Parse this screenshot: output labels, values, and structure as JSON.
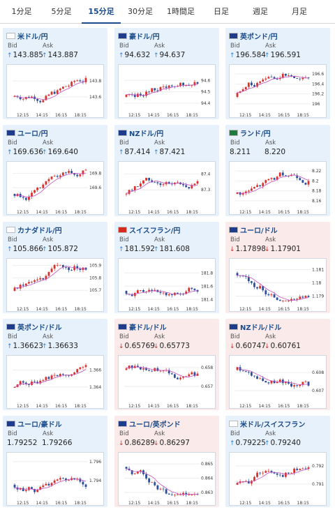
{
  "tabs": [
    {
      "label": "1分足"
    },
    {
      "label": "5分足"
    },
    {
      "label": "15分足",
      "active": true
    },
    {
      "label": "30分足"
    },
    {
      "label": "1時間足"
    },
    {
      "label": "日足"
    },
    {
      "label": "週足"
    },
    {
      "label": "月足"
    }
  ],
  "colors": {
    "up_arrow": "#2a7fd4",
    "down_arrow": "#c9302c",
    "bull_candle": "#d9312b",
    "bear_candle": "#2b4f9a",
    "ma_line": "#c44fc4",
    "up_card": "#e7f1fb",
    "down_card": "#fbeaea",
    "accent": "#1a4c8b"
  },
  "labels": {
    "bid": "Bid",
    "ask": "Ask"
  },
  "x_ticks": [
    "12:15",
    "14:15",
    "16:15",
    "18:15"
  ],
  "cards": [
    {
      "pair": "米ドル/円",
      "flag": "us-jp",
      "trend": "up",
      "bid": "143.885",
      "ask": "143.887",
      "y_ticks": [
        "143.8",
        "143.6"
      ],
      "ylim": [
        143.45,
        143.95
      ]
    },
    {
      "pair": "豪ドル/円",
      "flag": "au-jp",
      "trend": "up",
      "bid": "94.632",
      "ask": "94.637",
      "y_ticks": [
        "94.6",
        "94.5",
        "94.4"
      ],
      "ylim": [
        94.35,
        94.7
      ]
    },
    {
      "pair": "英ポンド/円",
      "flag": "gb-jp",
      "trend": "up",
      "bid": "196.584",
      "ask": "196.591",
      "y_ticks": [
        "196.6",
        "196.4",
        "196.2",
        "196"
      ],
      "ylim": [
        195.9,
        196.7
      ]
    },
    {
      "pair": "ユーロ/円",
      "flag": "eu-jp",
      "trend": "up",
      "bid": "169.636",
      "ask": "169.640",
      "y_ticks": [
        "169.8",
        "169.6"
      ],
      "ylim": [
        169.35,
        169.9
      ]
    },
    {
      "pair": "NZドル/円",
      "flag": "nz-jp",
      "trend": "up",
      "bid": "87.414",
      "ask": "87.421",
      "y_ticks": [
        "87.4",
        "87.3"
      ],
      "ylim": [
        87.2,
        87.45
      ]
    },
    {
      "pair": "ランド/円",
      "flag": "za-jp",
      "trend": "none",
      "bid": "8.211",
      "ask": "8.220",
      "y_ticks": [
        "8.22",
        "8.2",
        "8.18",
        "8.16"
      ],
      "ylim": [
        8.15,
        8.23
      ]
    },
    {
      "pair": "カナダドル/円",
      "flag": "ca-jp",
      "trend": "up",
      "bid": "105.866",
      "ask": "105.872",
      "y_ticks": [
        "105.9",
        "105.8",
        "105.7"
      ],
      "ylim": [
        105.6,
        105.92
      ]
    },
    {
      "pair": "スイスフラン/円",
      "flag": "ch-jp",
      "trend": "up",
      "bid": "181.592",
      "ask": "181.608",
      "y_ticks": [
        "181.8",
        "181.6",
        "181.4"
      ],
      "ylim": [
        181.35,
        181.95
      ]
    },
    {
      "pair": "ユーロ/ドル",
      "flag": "eu-us",
      "trend": "down",
      "bid": "1.17898",
      "ask": "1.17901",
      "y_ticks": [
        "1.181",
        "1.18",
        "1.179"
      ],
      "ylim": [
        1.1785,
        1.1815
      ]
    },
    {
      "pair": "英ポンド/ドル",
      "flag": "gb-us",
      "trend": "up",
      "bid": "1.36623",
      "ask": "1.36633",
      "y_ticks": [
        "1.366",
        "1.364"
      ],
      "ylim": [
        1.3625,
        1.3672
      ]
    },
    {
      "pair": "豪ドル/ドル",
      "flag": "au-us",
      "trend": "down",
      "bid": "0.65769",
      "ask": "0.65773",
      "y_ticks": [
        "0.658",
        "0.657"
      ],
      "ylim": [
        0.6563,
        0.6584
      ]
    },
    {
      "pair": "NZドル/ドル",
      "flag": "nz-us",
      "trend": "down",
      "bid": "0.60747",
      "ask": "0.60761",
      "y_ticks": [
        "0.608",
        "0.607"
      ],
      "ylim": [
        0.6065,
        0.6087
      ]
    },
    {
      "pair": "ユーロ/豪ドル",
      "flag": "eu-au",
      "trend": "none",
      "bid": "1.79252",
      "ask": "1.79266",
      "y_ticks": [
        "1.796",
        "1.794"
      ],
      "ylim": [
        1.7923,
        1.7965
      ]
    },
    {
      "pair": "ユーロ/英ポンド",
      "flag": "eu-gb",
      "trend": "down",
      "bid": "0.86289",
      "ask": "0.86297",
      "y_ticks": [
        "0.865",
        "0.864",
        "0.863"
      ],
      "ylim": [
        0.8627,
        0.8655
      ]
    },
    {
      "pair": "米ドル/スイスフラン",
      "flag": "us-ch",
      "trend": "up",
      "bid": "0.79225",
      "ask": "0.79240",
      "y_ticks": [
        "0.792",
        "0.791"
      ],
      "ylim": [
        0.7903,
        0.7925
      ]
    }
  ]
}
